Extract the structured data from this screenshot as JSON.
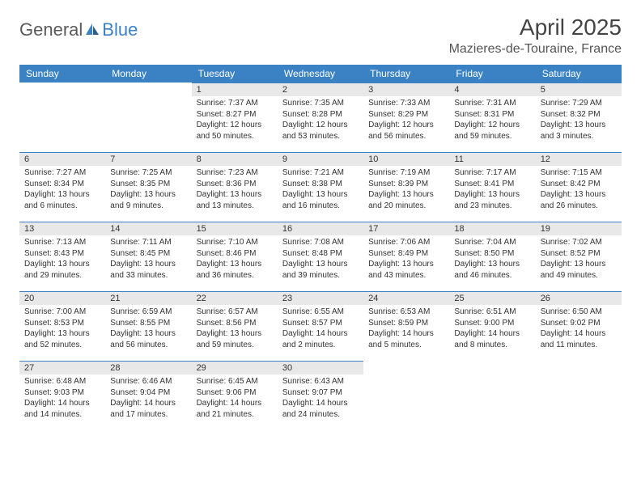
{
  "brand": {
    "name1": "General",
    "name2": "Blue"
  },
  "title": "April 2025",
  "location": "Mazieres-de-Touraine, France",
  "colors": {
    "header_bg": "#3b82c4",
    "header_text": "#ffffff",
    "daynum_bg": "#e8e8e8",
    "daynum_border": "#3b82c4",
    "body_text": "#333333",
    "logo_gray": "#5a5a5a",
    "logo_blue": "#3b82c4",
    "page_bg": "#ffffff"
  },
  "weekdays": [
    "Sunday",
    "Monday",
    "Tuesday",
    "Wednesday",
    "Thursday",
    "Friday",
    "Saturday"
  ],
  "weeks": [
    [
      {
        "n": "",
        "sr": "",
        "ss": "",
        "dl": ""
      },
      {
        "n": "",
        "sr": "",
        "ss": "",
        "dl": ""
      },
      {
        "n": "1",
        "sr": "Sunrise: 7:37 AM",
        "ss": "Sunset: 8:27 PM",
        "dl": "Daylight: 12 hours and 50 minutes."
      },
      {
        "n": "2",
        "sr": "Sunrise: 7:35 AM",
        "ss": "Sunset: 8:28 PM",
        "dl": "Daylight: 12 hours and 53 minutes."
      },
      {
        "n": "3",
        "sr": "Sunrise: 7:33 AM",
        "ss": "Sunset: 8:29 PM",
        "dl": "Daylight: 12 hours and 56 minutes."
      },
      {
        "n": "4",
        "sr": "Sunrise: 7:31 AM",
        "ss": "Sunset: 8:31 PM",
        "dl": "Daylight: 12 hours and 59 minutes."
      },
      {
        "n": "5",
        "sr": "Sunrise: 7:29 AM",
        "ss": "Sunset: 8:32 PM",
        "dl": "Daylight: 13 hours and 3 minutes."
      }
    ],
    [
      {
        "n": "6",
        "sr": "Sunrise: 7:27 AM",
        "ss": "Sunset: 8:34 PM",
        "dl": "Daylight: 13 hours and 6 minutes."
      },
      {
        "n": "7",
        "sr": "Sunrise: 7:25 AM",
        "ss": "Sunset: 8:35 PM",
        "dl": "Daylight: 13 hours and 9 minutes."
      },
      {
        "n": "8",
        "sr": "Sunrise: 7:23 AM",
        "ss": "Sunset: 8:36 PM",
        "dl": "Daylight: 13 hours and 13 minutes."
      },
      {
        "n": "9",
        "sr": "Sunrise: 7:21 AM",
        "ss": "Sunset: 8:38 PM",
        "dl": "Daylight: 13 hours and 16 minutes."
      },
      {
        "n": "10",
        "sr": "Sunrise: 7:19 AM",
        "ss": "Sunset: 8:39 PM",
        "dl": "Daylight: 13 hours and 20 minutes."
      },
      {
        "n": "11",
        "sr": "Sunrise: 7:17 AM",
        "ss": "Sunset: 8:41 PM",
        "dl": "Daylight: 13 hours and 23 minutes."
      },
      {
        "n": "12",
        "sr": "Sunrise: 7:15 AM",
        "ss": "Sunset: 8:42 PM",
        "dl": "Daylight: 13 hours and 26 minutes."
      }
    ],
    [
      {
        "n": "13",
        "sr": "Sunrise: 7:13 AM",
        "ss": "Sunset: 8:43 PM",
        "dl": "Daylight: 13 hours and 29 minutes."
      },
      {
        "n": "14",
        "sr": "Sunrise: 7:11 AM",
        "ss": "Sunset: 8:45 PM",
        "dl": "Daylight: 13 hours and 33 minutes."
      },
      {
        "n": "15",
        "sr": "Sunrise: 7:10 AM",
        "ss": "Sunset: 8:46 PM",
        "dl": "Daylight: 13 hours and 36 minutes."
      },
      {
        "n": "16",
        "sr": "Sunrise: 7:08 AM",
        "ss": "Sunset: 8:48 PM",
        "dl": "Daylight: 13 hours and 39 minutes."
      },
      {
        "n": "17",
        "sr": "Sunrise: 7:06 AM",
        "ss": "Sunset: 8:49 PM",
        "dl": "Daylight: 13 hours and 43 minutes."
      },
      {
        "n": "18",
        "sr": "Sunrise: 7:04 AM",
        "ss": "Sunset: 8:50 PM",
        "dl": "Daylight: 13 hours and 46 minutes."
      },
      {
        "n": "19",
        "sr": "Sunrise: 7:02 AM",
        "ss": "Sunset: 8:52 PM",
        "dl": "Daylight: 13 hours and 49 minutes."
      }
    ],
    [
      {
        "n": "20",
        "sr": "Sunrise: 7:00 AM",
        "ss": "Sunset: 8:53 PM",
        "dl": "Daylight: 13 hours and 52 minutes."
      },
      {
        "n": "21",
        "sr": "Sunrise: 6:59 AM",
        "ss": "Sunset: 8:55 PM",
        "dl": "Daylight: 13 hours and 56 minutes."
      },
      {
        "n": "22",
        "sr": "Sunrise: 6:57 AM",
        "ss": "Sunset: 8:56 PM",
        "dl": "Daylight: 13 hours and 59 minutes."
      },
      {
        "n": "23",
        "sr": "Sunrise: 6:55 AM",
        "ss": "Sunset: 8:57 PM",
        "dl": "Daylight: 14 hours and 2 minutes."
      },
      {
        "n": "24",
        "sr": "Sunrise: 6:53 AM",
        "ss": "Sunset: 8:59 PM",
        "dl": "Daylight: 14 hours and 5 minutes."
      },
      {
        "n": "25",
        "sr": "Sunrise: 6:51 AM",
        "ss": "Sunset: 9:00 PM",
        "dl": "Daylight: 14 hours and 8 minutes."
      },
      {
        "n": "26",
        "sr": "Sunrise: 6:50 AM",
        "ss": "Sunset: 9:02 PM",
        "dl": "Daylight: 14 hours and 11 minutes."
      }
    ],
    [
      {
        "n": "27",
        "sr": "Sunrise: 6:48 AM",
        "ss": "Sunset: 9:03 PM",
        "dl": "Daylight: 14 hours and 14 minutes."
      },
      {
        "n": "28",
        "sr": "Sunrise: 6:46 AM",
        "ss": "Sunset: 9:04 PM",
        "dl": "Daylight: 14 hours and 17 minutes."
      },
      {
        "n": "29",
        "sr": "Sunrise: 6:45 AM",
        "ss": "Sunset: 9:06 PM",
        "dl": "Daylight: 14 hours and 21 minutes."
      },
      {
        "n": "30",
        "sr": "Sunrise: 6:43 AM",
        "ss": "Sunset: 9:07 PM",
        "dl": "Daylight: 14 hours and 24 minutes."
      },
      {
        "n": "",
        "sr": "",
        "ss": "",
        "dl": ""
      },
      {
        "n": "",
        "sr": "",
        "ss": "",
        "dl": ""
      },
      {
        "n": "",
        "sr": "",
        "ss": "",
        "dl": ""
      }
    ]
  ]
}
